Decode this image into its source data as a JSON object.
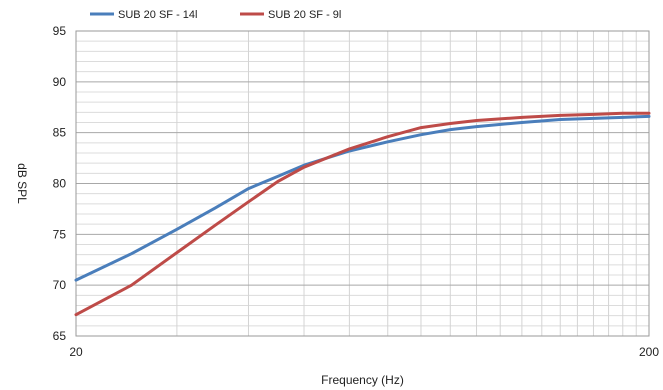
{
  "chart_data": {
    "type": "line",
    "xlabel": "Frequency (Hz)",
    "ylabel": "dB SPL",
    "x_scale": "log",
    "xlim": [
      20,
      200
    ],
    "ylim": [
      65,
      95
    ],
    "x_ticks": [
      {
        "value": 20,
        "label": "20"
      },
      {
        "value": 200,
        "label": "200"
      }
    ],
    "y_ticks": [
      65,
      70,
      75,
      80,
      85,
      90,
      95
    ],
    "grid": true,
    "legend_position": "top-left",
    "series": [
      {
        "name": "SUB 20 SF - 14l",
        "color": "#4a7ebb",
        "points": [
          [
            20,
            70.5
          ],
          [
            25,
            73.1
          ],
          [
            30,
            75.5
          ],
          [
            35,
            77.6
          ],
          [
            40,
            79.5
          ],
          [
            45,
            80.7
          ],
          [
            50,
            81.8
          ],
          [
            60,
            83.2
          ],
          [
            70,
            84.1
          ],
          [
            80,
            84.8
          ],
          [
            90,
            85.3
          ],
          [
            100,
            85.6
          ],
          [
            120,
            86.0
          ],
          [
            140,
            86.3
          ],
          [
            160,
            86.4
          ],
          [
            180,
            86.5
          ],
          [
            200,
            86.6
          ]
        ]
      },
      {
        "name": "SUB 20 SF - 9l",
        "color": "#be4b48",
        "points": [
          [
            20,
            67.1
          ],
          [
            25,
            70.0
          ],
          [
            30,
            73.2
          ],
          [
            35,
            75.9
          ],
          [
            40,
            78.2
          ],
          [
            45,
            80.2
          ],
          [
            50,
            81.6
          ],
          [
            60,
            83.4
          ],
          [
            70,
            84.6
          ],
          [
            80,
            85.5
          ],
          [
            90,
            85.9
          ],
          [
            100,
            86.2
          ],
          [
            120,
            86.5
          ],
          [
            140,
            86.7
          ],
          [
            160,
            86.8
          ],
          [
            180,
            86.9
          ],
          [
            200,
            86.9
          ]
        ]
      }
    ]
  }
}
